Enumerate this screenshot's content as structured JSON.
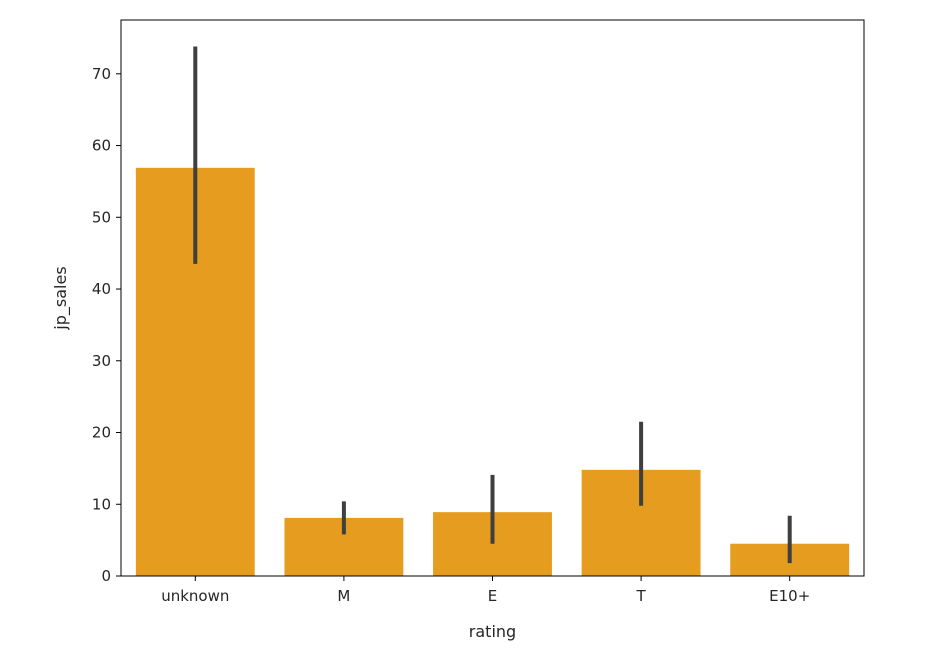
{
  "chart_data": {
    "type": "bar",
    "categories": [
      "unknown",
      "M",
      "E",
      "T",
      "E10+"
    ],
    "values": [
      56.9,
      8.1,
      8.9,
      14.8,
      4.5
    ],
    "error_bars": [
      [
        43.5,
        73.8
      ],
      [
        5.8,
        10.4
      ],
      [
        4.5,
        14.1
      ],
      [
        9.8,
        21.5
      ],
      [
        1.8,
        8.4
      ]
    ],
    "xlabel": "rating",
    "ylabel": "jp_sales",
    "ylim": [
      0,
      77.5
    ],
    "yticks": [
      0,
      10,
      20,
      30,
      40,
      50,
      60,
      70
    ],
    "bar_color": "#e59c1f",
    "errorbar_color": "#3f3f3f",
    "grid": false
  }
}
